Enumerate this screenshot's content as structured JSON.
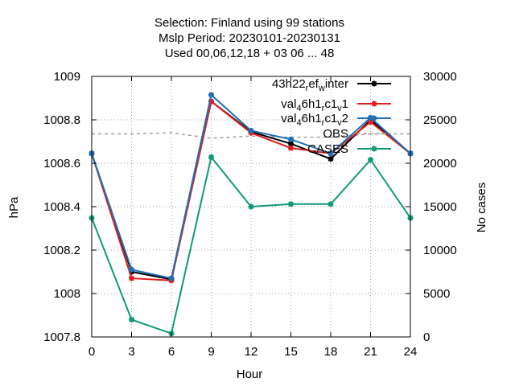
{
  "chart_data": {
    "type": "line",
    "title_lines": [
      "Selection: Finland using    99 stations",
      "Mslp   Period: 20230101-20230131",
      "Used  00,06,12,18 + 03 06 ... 48"
    ],
    "xlabel": "Hour",
    "ylabel": "hPa",
    "y2label": "No cases",
    "x": [
      0,
      3,
      6,
      9,
      12,
      15,
      18,
      21,
      24
    ],
    "xlim": [
      0,
      24
    ],
    "ylim": [
      1007.8,
      1009.0
    ],
    "y2lim": [
      0,
      30000
    ],
    "xticks": [
      "0",
      "3",
      "6",
      "9",
      "12",
      "15",
      "18",
      "21",
      "24"
    ],
    "yticks": [
      "1007.8",
      "1008",
      "1008.2",
      "1008.4",
      "1008.6",
      "1008.8",
      "1009"
    ],
    "y2ticks": [
      "0",
      "5000",
      "10000",
      "15000",
      "20000",
      "25000",
      "30000"
    ],
    "grid": true,
    "legend_position": "top-right",
    "series": [
      {
        "name": "43h22_ref_winter",
        "legend": {
          "base": "43h22",
          "sub1": "r",
          "mid": "ef",
          "sub2": "w",
          "tail": "inter"
        },
        "color": "#000000",
        "axis": "left",
        "values": [
          1008.645,
          1008.1,
          1008.065,
          1008.885,
          1008.745,
          1008.69,
          1008.62,
          1008.8,
          1008.645
        ]
      },
      {
        "name": "val_46h1_rc1_v1",
        "legend": {
          "base": "val",
          "sub1": "4",
          "mid": "6h1",
          "sub2": "r",
          "mid2": "c1",
          "sub3": "v",
          "tail": "1"
        },
        "color": "#dd2020",
        "axis": "left",
        "values": [
          1008.645,
          1008.07,
          1008.06,
          1008.885,
          1008.74,
          1008.67,
          1008.645,
          1008.79,
          1008.645
        ]
      },
      {
        "name": "val_46h1_rc1_v2",
        "legend": {
          "base": "val",
          "sub1": "4",
          "mid": "6h1",
          "sub2": "r",
          "mid2": "c1",
          "sub3": "v",
          "tail": "2"
        },
        "color": "#1f6fb5",
        "axis": "left",
        "values": [
          1008.645,
          1008.11,
          1008.07,
          1008.915,
          1008.75,
          1008.71,
          1008.645,
          1008.81,
          1008.645
        ]
      },
      {
        "name": "OBS",
        "legend": {
          "base": "OBS"
        },
        "color": "#a0a0a0",
        "axis": "left",
        "style": "dashed",
        "values": [
          1008.735,
          1008.735,
          1008.74,
          1008.715,
          1008.725,
          1008.72,
          1008.72,
          1008.735,
          1008.735
        ]
      },
      {
        "name": "CASES",
        "legend": {
          "base": "CASES"
        },
        "color": "#0f9a78",
        "axis": "right",
        "values": [
          13700,
          2000,
          400,
          20700,
          15000,
          15300,
          15300,
          20400,
          13700
        ]
      }
    ]
  }
}
